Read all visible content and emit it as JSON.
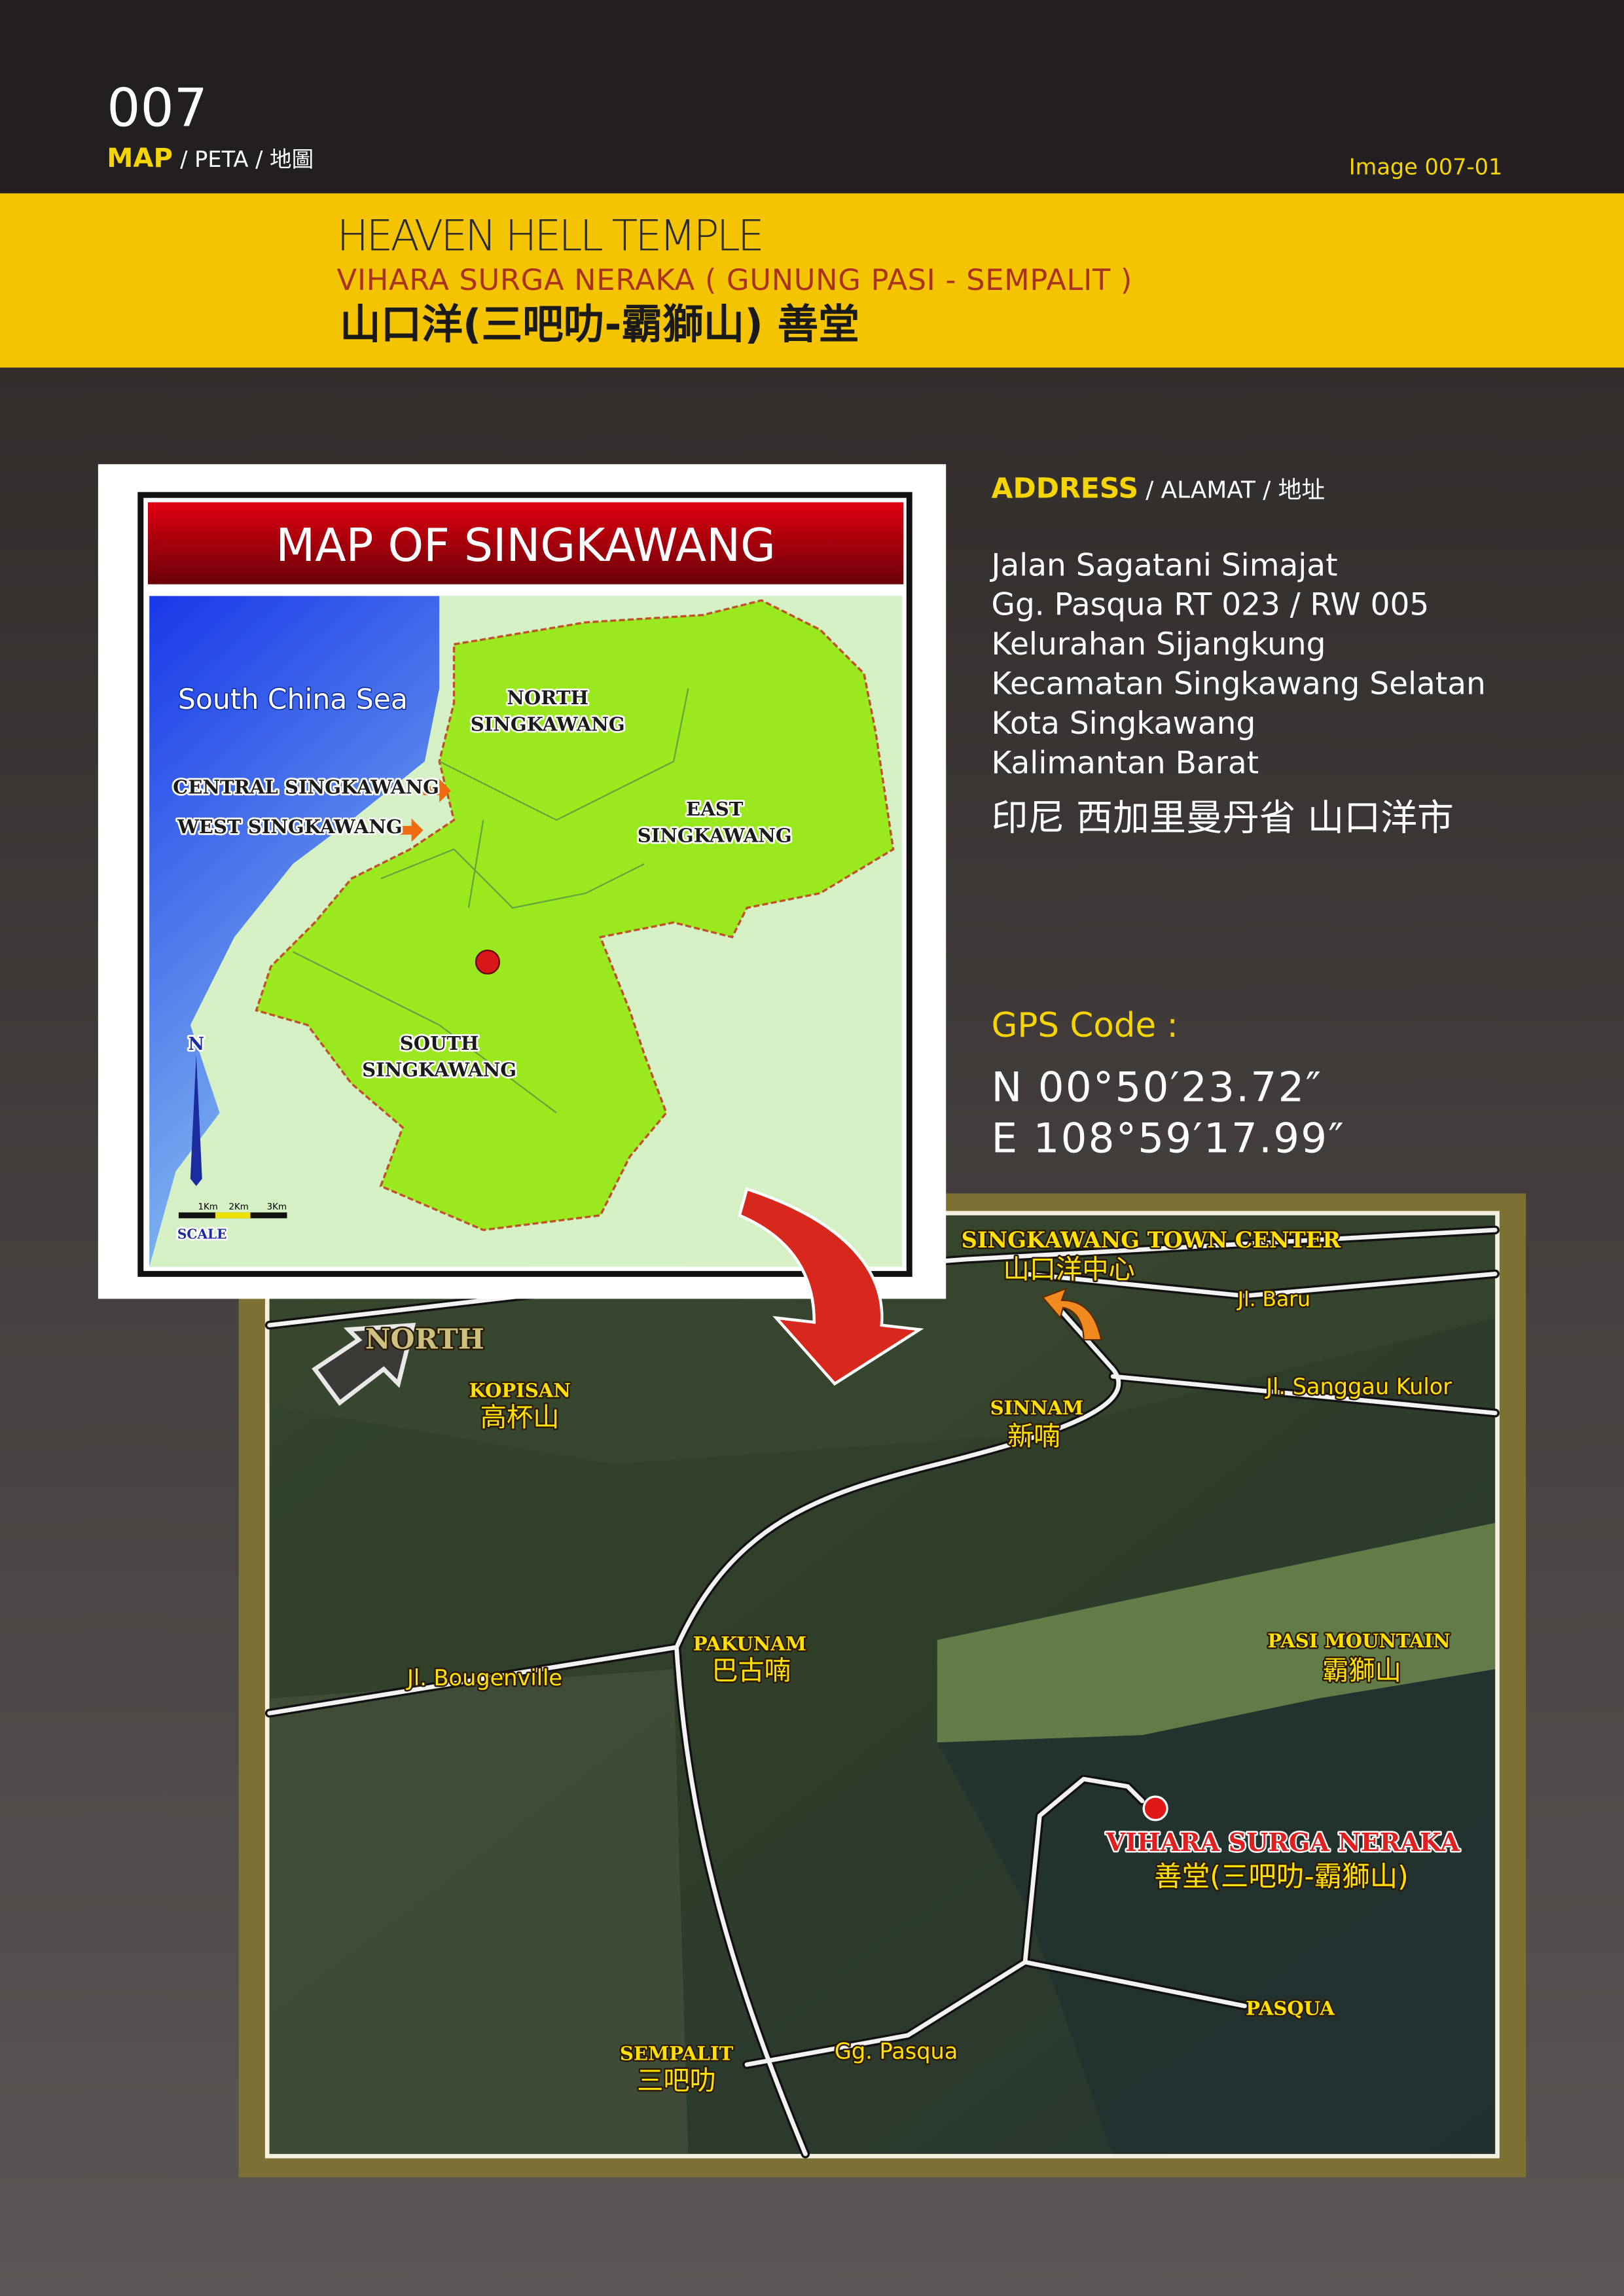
{
  "header": {
    "number": "007",
    "section": [
      "MAP",
      "/ PETA / 地圖"
    ],
    "image_id": "Image 007-01"
  },
  "banner": {
    "title": "HEAVEN HELL TEMPLE",
    "subtitle": "VIHARA SURGA NERAKA ( GUNUNG PASI - SEMPALIT )",
    "chinese": "山口洋(三吧叻-霸獅山) 善堂"
  },
  "address": {
    "heading": [
      "ADDRESS",
      "/ ALAMAT / 地址"
    ],
    "lines": [
      "Jalan Sagatani Simajat",
      "Gg. Pasqua RT 023 / RW 005",
      "Kelurahan Sijangkung",
      "Kecamatan Singkawang Selatan",
      "Kota Singkawang",
      "Kalimantan Barat"
    ],
    "chinese": "印尼 西加里曼丹省 山口洋市"
  },
  "gps": {
    "label": "GPS Code :",
    "lines": [
      "N  00°50′23.72″",
      "E 108°59′17.99″"
    ]
  },
  "inset_map": {
    "title": "MAP OF SINGKAWANG",
    "labels": [
      "South China Sea",
      "NORTH",
      "SINGKAWANG",
      "CENTRAL SINGKAWANG",
      "WEST SINGKAWANG",
      "EAST",
      "SINGKAWANG",
      "SOUTH",
      "SINGKAWANG",
      "N",
      "1Km",
      "2Km",
      "3Km",
      "SCALE"
    ]
  },
  "satellite_map": {
    "labels": [
      "NORTH",
      "KOPISAN",
      "高杯山",
      "SINGKAWANG TOWN CENTER",
      "山口洋中心",
      "Jl. Baru",
      "SINNAM",
      "新喃",
      "Jl. Sanggau Kulor",
      "PAKUNAM",
      "巴古喃",
      "Jl. Bougenville",
      "PASI MOUNTAIN",
      "霸獅山",
      "VIHARA SURGA NERAKA",
      "善堂(三吧叻-霸獅山)",
      "PASQUA",
      "SEMPALIT",
      "三吧叻",
      "Gg. Pasqua"
    ]
  }
}
